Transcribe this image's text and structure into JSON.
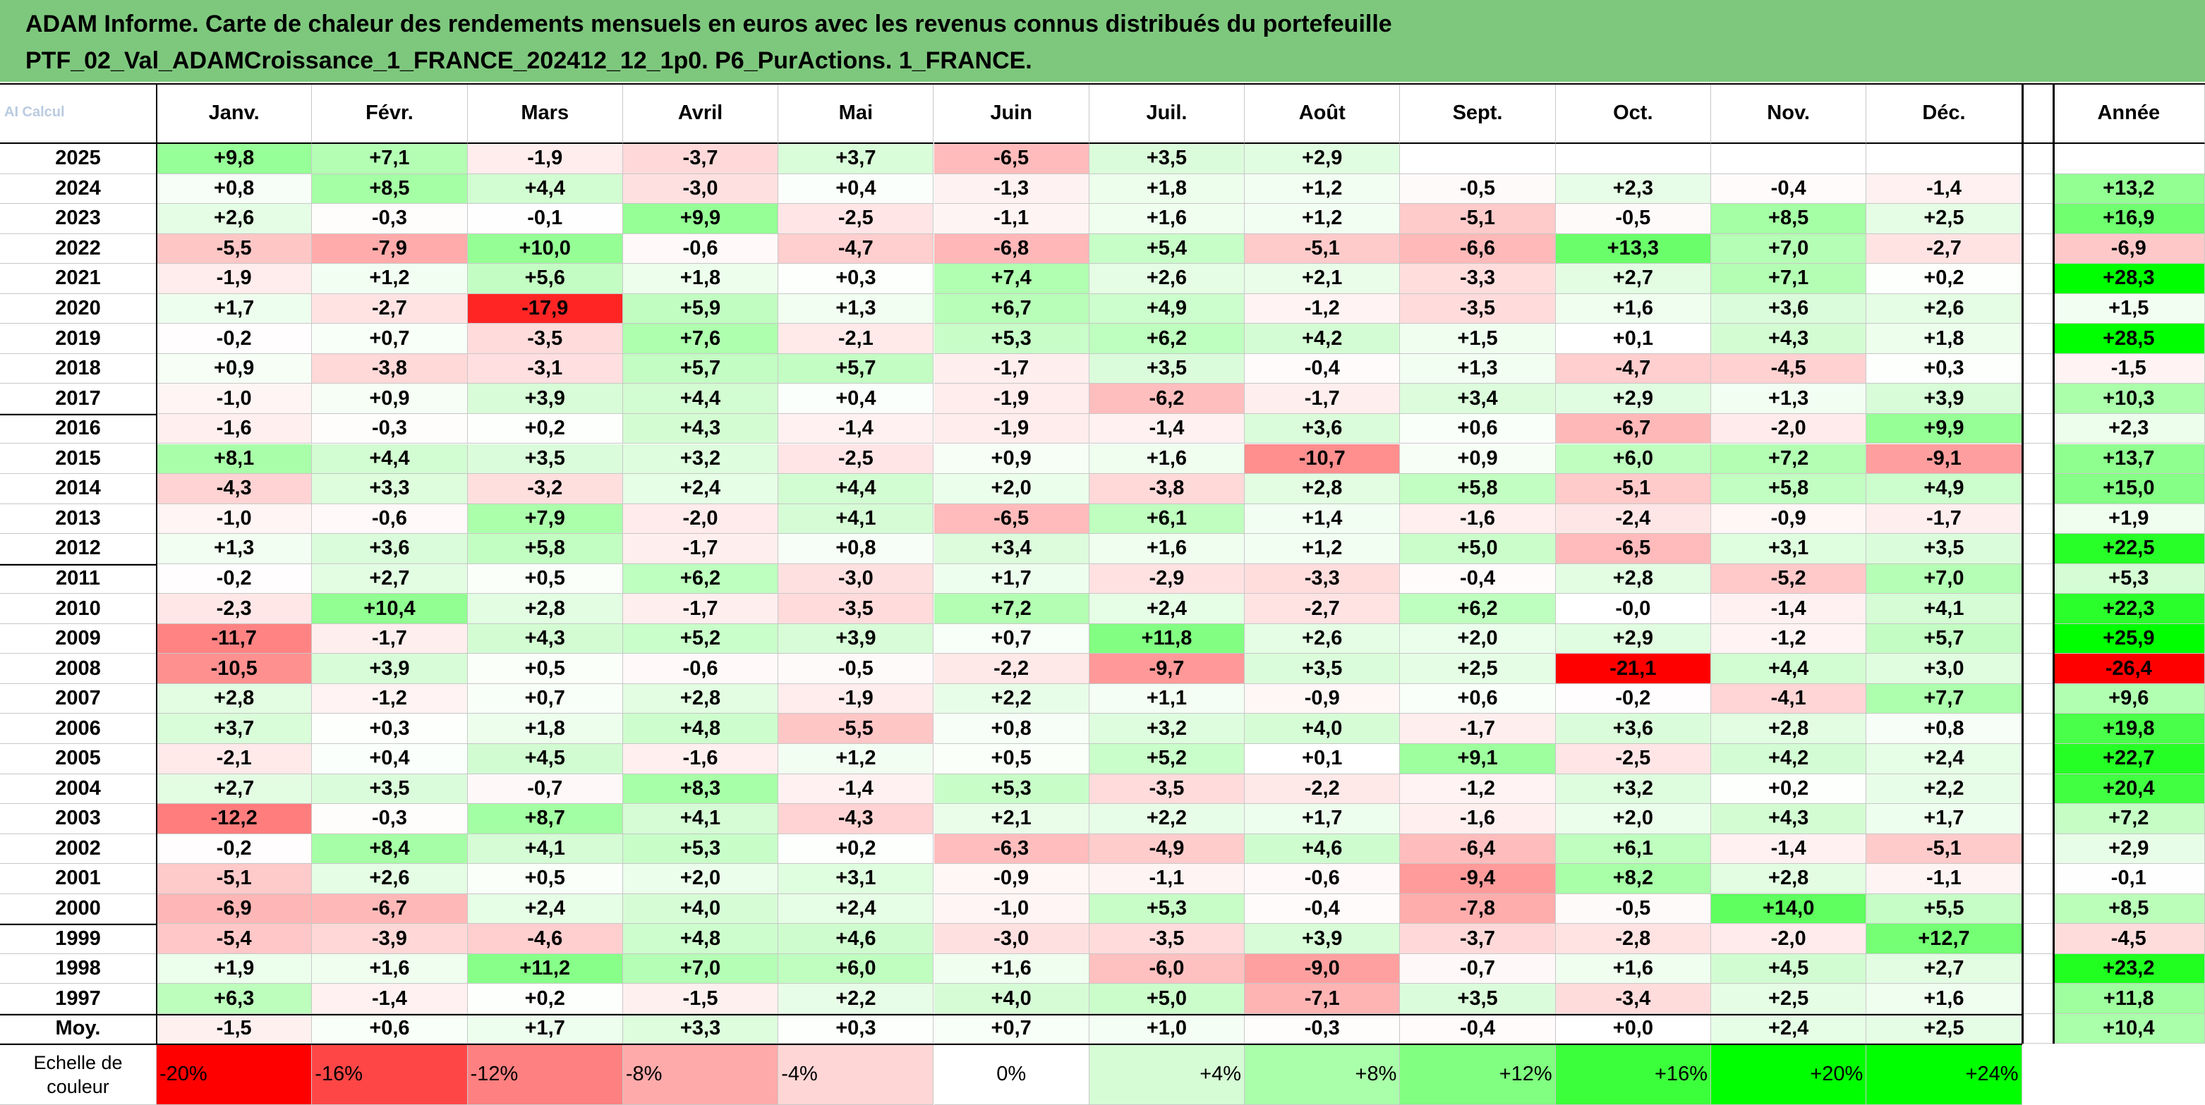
{
  "title": {
    "line1": "ADAM Informe. Carte de chaleur des rendements mensuels en euros avec les revenus connus distribués du portefeuille",
    "line2": "PTF_02_Val_ADAMCroissance_1_FRANCE_202412_12_1p0. P6_PurActions. 1_FRANCE."
  },
  "watermark": "AI Calcul",
  "colors": {
    "title_bg": "#7ec87e",
    "positive_max": "#00ff00",
    "negative_max": "#ff0000",
    "neutral": "#ffffff"
  },
  "chart_data": {
    "type": "heatmap",
    "title": "ADAM Informe. Carte de chaleur des rendements mensuels en euros avec les revenus connus distribués du portefeuille PTF_02_Val_ADAMCroissance_1_FRANCE_202412_12_1p0. P6_PurActions. 1_FRANCE.",
    "columns": [
      "Janv.",
      "Févr.",
      "Mars",
      "Avril",
      "Mai",
      "Juin",
      "Juil.",
      "Août",
      "Sept.",
      "Oct.",
      "Nov.",
      "Déc."
    ],
    "year_column": "Année",
    "rows": [
      {
        "year": "2025",
        "values": [
          "+9,8",
          "+7,1",
          "-1,9",
          "-3,7",
          "+3,7",
          "-6,5",
          "+3,5",
          "+2,9",
          "",
          "",
          "",
          ""
        ],
        "annual": ""
      },
      {
        "year": "2024",
        "values": [
          "+0,8",
          "+8,5",
          "+4,4",
          "-3,0",
          "+0,4",
          "-1,3",
          "+1,8",
          "+1,2",
          "-0,5",
          "+2,3",
          "-0,4",
          "-1,4"
        ],
        "annual": "+13,2"
      },
      {
        "year": "2023",
        "values": [
          "+2,6",
          "-0,3",
          "-0,1",
          "+9,9",
          "-2,5",
          "-1,1",
          "+1,6",
          "+1,2",
          "-5,1",
          "-0,5",
          "+8,5",
          "+2,5"
        ],
        "annual": "+16,9"
      },
      {
        "year": "2022",
        "values": [
          "-5,5",
          "-7,9",
          "+10,0",
          "-0,6",
          "-4,7",
          "-6,8",
          "+5,4",
          "-5,1",
          "-6,6",
          "+13,3",
          "+7,0",
          "-2,7"
        ],
        "annual": "-6,9"
      },
      {
        "year": "2021",
        "values": [
          "-1,9",
          "+1,2",
          "+5,6",
          "+1,8",
          "+0,3",
          "+7,4",
          "+2,6",
          "+2,1",
          "-3,3",
          "+2,7",
          "+7,1",
          "+0,2"
        ],
        "annual": "+28,3"
      },
      {
        "year": "2020",
        "values": [
          "+1,7",
          "-2,7",
          "-17,9",
          "+5,9",
          "+1,3",
          "+6,7",
          "+4,9",
          "-1,2",
          "-3,5",
          "+1,6",
          "+3,6",
          "+2,6"
        ],
        "annual": "+1,5"
      },
      {
        "year": "2019",
        "values": [
          "-0,2",
          "+0,7",
          "-3,5",
          "+7,6",
          "-2,1",
          "+5,3",
          "+6,2",
          "+4,2",
          "+1,5",
          "+0,1",
          "+4,3",
          "+1,8"
        ],
        "annual": "+28,5"
      },
      {
        "year": "2018",
        "values": [
          "+0,9",
          "-3,8",
          "-3,1",
          "+5,7",
          "+5,7",
          "-1,7",
          "+3,5",
          "-0,4",
          "+1,3",
          "-4,7",
          "-4,5",
          "+0,3"
        ],
        "annual": "-1,5"
      },
      {
        "year": "2017",
        "values": [
          "-1,0",
          "+0,9",
          "+3,9",
          "+4,4",
          "+0,4",
          "-1,9",
          "-6,2",
          "-1,7",
          "+3,4",
          "+2,9",
          "+1,3",
          "+3,9"
        ],
        "annual": "+10,3"
      },
      {
        "year": "2016",
        "values": [
          "-1,6",
          "-0,3",
          "+0,2",
          "+4,3",
          "-1,4",
          "-1,9",
          "-1,4",
          "+3,6",
          "+0,6",
          "-6,7",
          "-2,0",
          "+9,9"
        ],
        "annual": "+2,3"
      },
      {
        "year": "2015",
        "values": [
          "+8,1",
          "+4,4",
          "+3,5",
          "+3,2",
          "-2,5",
          "+0,9",
          "+1,6",
          "-10,7",
          "+0,9",
          "+6,0",
          "+7,2",
          "-9,1"
        ],
        "annual": "+13,7"
      },
      {
        "year": "2014",
        "values": [
          "-4,3",
          "+3,3",
          "-3,2",
          "+2,4",
          "+4,4",
          "+2,0",
          "-3,8",
          "+2,8",
          "+5,8",
          "-5,1",
          "+5,8",
          "+4,9"
        ],
        "annual": "+15,0"
      },
      {
        "year": "2013",
        "values": [
          "-1,0",
          "-0,6",
          "+7,9",
          "-2,0",
          "+4,1",
          "-6,5",
          "+6,1",
          "+1,4",
          "-1,6",
          "-2,4",
          "-0,9",
          "-1,7"
        ],
        "annual": "+1,9"
      },
      {
        "year": "2012",
        "values": [
          "+1,3",
          "+3,6",
          "+5,8",
          "-1,7",
          "+0,8",
          "+3,4",
          "+1,6",
          "+1,2",
          "+5,0",
          "-6,5",
          "+3,1",
          "+3,5"
        ],
        "annual": "+22,5"
      },
      {
        "year": "2011",
        "values": [
          "-0,2",
          "+2,7",
          "+0,5",
          "+6,2",
          "-3,0",
          "+1,7",
          "-2,9",
          "-3,3",
          "-0,4",
          "+2,8",
          "-5,2",
          "+7,0"
        ],
        "annual": "+5,3"
      },
      {
        "year": "2010",
        "values": [
          "-2,3",
          "+10,4",
          "+2,8",
          "-1,7",
          "-3,5",
          "+7,2",
          "+2,4",
          "-2,7",
          "+6,2",
          "-0,0",
          "-1,4",
          "+4,1"
        ],
        "annual": "+22,3"
      },
      {
        "year": "2009",
        "values": [
          "-11,7",
          "-1,7",
          "+4,3",
          "+5,2",
          "+3,9",
          "+0,7",
          "+11,8",
          "+2,6",
          "+2,0",
          "+2,9",
          "-1,2",
          "+5,7"
        ],
        "annual": "+25,9"
      },
      {
        "year": "2008",
        "values": [
          "-10,5",
          "+3,9",
          "+0,5",
          "-0,6",
          "-0,5",
          "-2,2",
          "-9,7",
          "+3,5",
          "+2,5",
          "-21,1",
          "+4,4",
          "+3,0"
        ],
        "annual": "-26,4"
      },
      {
        "year": "2007",
        "values": [
          "+2,8",
          "-1,2",
          "+0,7",
          "+2,8",
          "-1,9",
          "+2,2",
          "+1,1",
          "-0,9",
          "+0,6",
          "-0,2",
          "-4,1",
          "+7,7"
        ],
        "annual": "+9,6"
      },
      {
        "year": "2006",
        "values": [
          "+3,7",
          "+0,3",
          "+1,8",
          "+4,8",
          "-5,5",
          "+0,8",
          "+3,2",
          "+4,0",
          "-1,7",
          "+3,6",
          "+2,8",
          "+0,8"
        ],
        "annual": "+19,8"
      },
      {
        "year": "2005",
        "values": [
          "-2,1",
          "+0,4",
          "+4,5",
          "-1,6",
          "+1,2",
          "+0,5",
          "+5,2",
          "+0,1",
          "+9,1",
          "-2,5",
          "+4,2",
          "+2,4"
        ],
        "annual": "+22,7"
      },
      {
        "year": "2004",
        "values": [
          "+2,7",
          "+3,5",
          "-0,7",
          "+8,3",
          "-1,4",
          "+5,3",
          "-3,5",
          "-2,2",
          "-1,2",
          "+3,2",
          "+0,2",
          "+2,2"
        ],
        "annual": "+20,4"
      },
      {
        "year": "2003",
        "values": [
          "-12,2",
          "-0,3",
          "+8,7",
          "+4,1",
          "-4,3",
          "+2,1",
          "+2,2",
          "+1,7",
          "-1,6",
          "+2,0",
          "+4,3",
          "+1,7"
        ],
        "annual": "+7,2"
      },
      {
        "year": "2002",
        "values": [
          "-0,2",
          "+8,4",
          "+4,1",
          "+5,3",
          "+0,2",
          "-6,3",
          "-4,9",
          "+4,6",
          "-6,4",
          "+6,1",
          "-1,4",
          "-5,1"
        ],
        "annual": "+2,9"
      },
      {
        "year": "2001",
        "values": [
          "-5,1",
          "+2,6",
          "+0,5",
          "+2,0",
          "+3,1",
          "-0,9",
          "-1,1",
          "-0,6",
          "-9,4",
          "+8,2",
          "+2,8",
          "-1,1"
        ],
        "annual": "-0,1"
      },
      {
        "year": "2000",
        "values": [
          "-6,9",
          "-6,7",
          "+2,4",
          "+4,0",
          "+2,4",
          "-1,0",
          "+5,3",
          "-0,4",
          "-7,8",
          "-0,5",
          "+14,0",
          "+5,5"
        ],
        "annual": "+8,5"
      },
      {
        "year": "1999",
        "values": [
          "-5,4",
          "-3,9",
          "-4,6",
          "+4,8",
          "+4,6",
          "-3,0",
          "-3,5",
          "+3,9",
          "-3,7",
          "-2,8",
          "-2,0",
          "+12,7"
        ],
        "annual": "-4,5"
      },
      {
        "year": "1998",
        "values": [
          "+1,9",
          "+1,6",
          "+11,2",
          "+7,0",
          "+6,0",
          "+1,6",
          "-6,0",
          "-9,0",
          "-0,7",
          "+1,6",
          "+4,5",
          "+2,7"
        ],
        "annual": "+23,2"
      },
      {
        "year": "1997",
        "values": [
          "+6,3",
          "-1,4",
          "+0,2",
          "-1,5",
          "+2,2",
          "+4,0",
          "+5,0",
          "-7,1",
          "+3,5",
          "-3,4",
          "+2,5",
          "+1,6"
        ],
        "annual": "+11,8"
      }
    ],
    "average": {
      "label": "Moy.",
      "values": [
        "-1,5",
        "+0,6",
        "+1,7",
        "+3,3",
        "+0,3",
        "+0,7",
        "+1,0",
        "-0,3",
        "-0,4",
        "+0,0",
        "+2,4",
        "+2,5"
      ],
      "annual": "+10,4"
    },
    "color_scale": {
      "label": "Echelle de couleur",
      "steps": [
        {
          "label": "-20%",
          "value": -20
        },
        {
          "label": "-16%",
          "value": -16
        },
        {
          "label": "-12%",
          "value": -12
        },
        {
          "label": "-8%",
          "value": -8
        },
        {
          "label": "-4%",
          "value": -4
        },
        {
          "label": "0%",
          "value": 0
        },
        {
          "label": "+4%",
          "value": 4
        },
        {
          "label": "+8%",
          "value": 8
        },
        {
          "label": "+12%",
          "value": 12
        },
        {
          "label": "+16%",
          "value": 16
        },
        {
          "label": "+20%",
          "value": 20
        },
        {
          "label": "+24%",
          "value": 24
        }
      ]
    }
  }
}
